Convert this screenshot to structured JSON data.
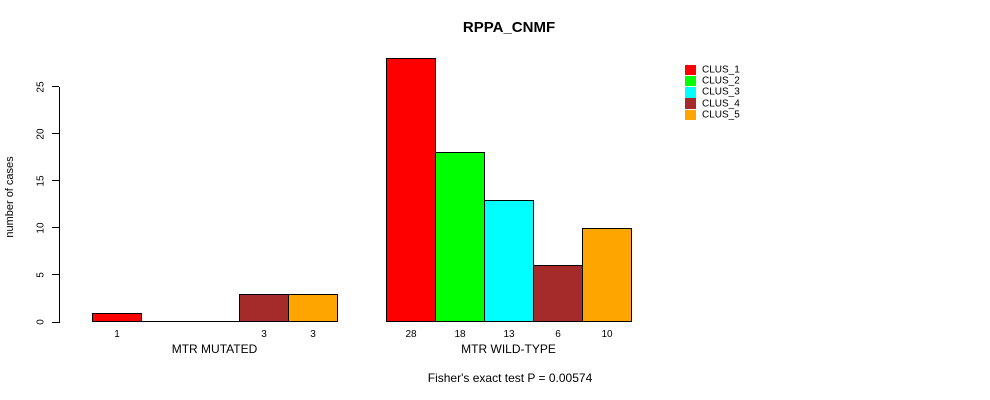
{
  "title": "RPPA_CNMF",
  "chart_data": {
    "type": "bar",
    "title": "RPPA_CNMF",
    "ylabel": "number of cases",
    "xlabel": "",
    "footnote": "Fisher's exact test P = 0.00574",
    "categories": [
      "CLUS_1",
      "CLUS_2",
      "CLUS_3",
      "CLUS_4",
      "CLUS_5"
    ],
    "colors": [
      "#ff0000",
      "#00ff00",
      "#00ffff",
      "#a52a2a",
      "#ffa500"
    ],
    "groups": [
      {
        "label": "MTR MUTATED",
        "values": [
          1,
          0,
          0,
          3,
          3
        ],
        "bar_labels": [
          "1",
          "",
          "",
          "3",
          "3"
        ]
      },
      {
        "label": "MTR WILD-TYPE",
        "values": [
          28,
          18,
          13,
          6,
          10
        ],
        "bar_labels": [
          "28",
          "18",
          "13",
          "6",
          "10"
        ]
      }
    ],
    "yticks": [
      0,
      5,
      10,
      15,
      20,
      25
    ],
    "ylim": [
      0,
      28
    ],
    "grid": false,
    "legend": {
      "position": "top-right",
      "entries": [
        "CLUS_1",
        "CLUS_2",
        "CLUS_3",
        "CLUS_4",
        "CLUS_5"
      ]
    }
  }
}
